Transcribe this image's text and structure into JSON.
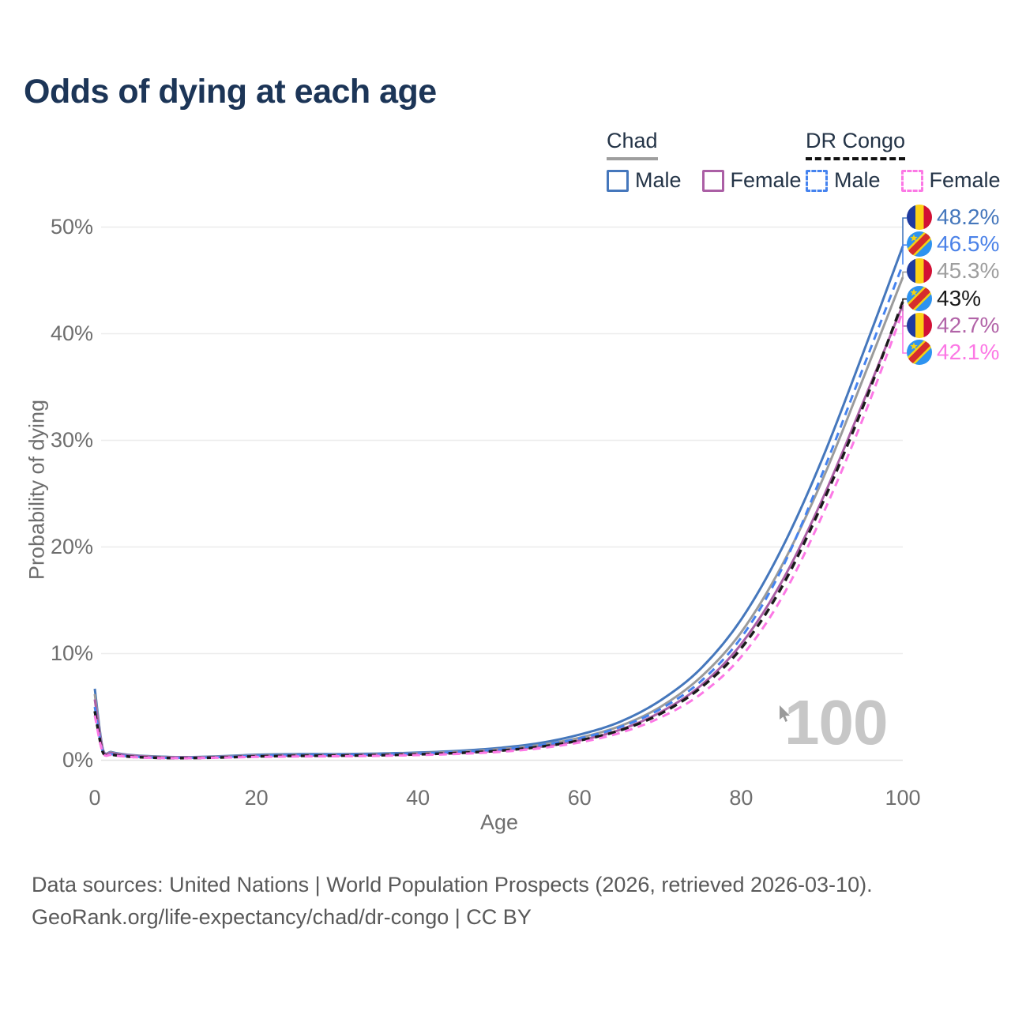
{
  "title": "Odds of dying at each age",
  "legend": {
    "groups": [
      {
        "label": "Chad",
        "line_style": "solid",
        "underline_color": "#9e9e9e",
        "items": [
          {
            "label": "Male",
            "color": "#4577bc"
          },
          {
            "label": "Female",
            "color": "#ab5fa5"
          }
        ]
      },
      {
        "label": "DR Congo",
        "line_style": "dashed",
        "underline_color": "#111111",
        "items": [
          {
            "label": "Male",
            "color": "#4583ef"
          },
          {
            "label": "Female",
            "color": "#fc78e5"
          }
        ]
      }
    ]
  },
  "axes": {
    "x_title": "Age",
    "y_title": "Probability of dying"
  },
  "watermark": "100",
  "cursor": "mouse-pointer",
  "sources": {
    "line1": "Data sources: United Nations | World Population Prospects (2026, retrieved 2026-03-10).",
    "line2": "GeoRank.org/life-expectancy/chad/dr-congo | CC BY"
  },
  "chart_data": {
    "type": "line",
    "xlabel": "Age",
    "ylabel": "Probability of dying",
    "xlim": [
      0,
      100
    ],
    "ylim": [
      0,
      50
    ],
    "x_ticks": [
      0,
      20,
      40,
      60,
      80,
      100
    ],
    "y_ticks": [
      0,
      10,
      20,
      30,
      40,
      50
    ],
    "y_tick_suffix": "%",
    "grid": "horizontal",
    "hovered_age": "100",
    "ages": [
      0,
      1,
      2,
      3,
      5,
      8,
      10,
      12,
      15,
      18,
      20,
      25,
      30,
      35,
      40,
      45,
      50,
      55,
      60,
      65,
      70,
      75,
      80,
      85,
      90,
      95,
      100
    ],
    "series": [
      {
        "key": "chad_male",
        "name": "Chad Male",
        "country": "Chad",
        "sex": "Male",
        "color": "#4577bc",
        "dash": false,
        "values": [
          6.7,
          1.05,
          0.78,
          0.62,
          0.45,
          0.34,
          0.3,
          0.3,
          0.36,
          0.45,
          0.52,
          0.58,
          0.58,
          0.62,
          0.72,
          0.88,
          1.15,
          1.6,
          2.4,
          3.6,
          5.6,
          8.6,
          13.2,
          19.8,
          28.2,
          38.0,
          48.2
        ]
      },
      {
        "key": "chad_total",
        "name": "Chad Both sexes",
        "country": "Chad",
        "sex": "Both",
        "color": "#9b9b9b",
        "dash": false,
        "values": [
          6.2,
          1.0,
          0.73,
          0.58,
          0.42,
          0.31,
          0.28,
          0.28,
          0.33,
          0.41,
          0.46,
          0.51,
          0.52,
          0.56,
          0.65,
          0.79,
          1.03,
          1.42,
          2.1,
          3.2,
          5.0,
          7.8,
          12.0,
          18.2,
          26.2,
          35.6,
          45.3
        ]
      },
      {
        "key": "chad_female",
        "name": "Chad Female",
        "country": "Chad",
        "sex": "Female",
        "color": "#ab5fa5",
        "dash": false,
        "values": [
          5.7,
          0.95,
          0.68,
          0.54,
          0.4,
          0.28,
          0.26,
          0.26,
          0.3,
          0.36,
          0.4,
          0.44,
          0.46,
          0.5,
          0.58,
          0.7,
          0.91,
          1.25,
          1.85,
          2.85,
          4.5,
          7.0,
          10.9,
          16.7,
          24.4,
          33.4,
          42.7
        ]
      },
      {
        "key": "drc_male",
        "name": "DR Congo Male",
        "country": "DR Congo",
        "sex": "Male",
        "color": "#4583ef",
        "dash": true,
        "values": [
          5.0,
          0.8,
          0.58,
          0.46,
          0.33,
          0.24,
          0.22,
          0.23,
          0.28,
          0.36,
          0.42,
          0.48,
          0.5,
          0.54,
          0.63,
          0.77,
          1.0,
          1.4,
          2.05,
          3.1,
          4.8,
          7.4,
          11.5,
          17.9,
          26.8,
          36.6,
          46.5
        ]
      },
      {
        "key": "drc_total",
        "name": "DR Congo Both sexes",
        "country": "DR Congo",
        "sex": "Both",
        "color": "#1a1a1a",
        "dash": true,
        "values": [
          4.6,
          0.75,
          0.54,
          0.43,
          0.3,
          0.22,
          0.2,
          0.21,
          0.25,
          0.31,
          0.36,
          0.41,
          0.43,
          0.47,
          0.55,
          0.68,
          0.89,
          1.25,
          1.85,
          2.8,
          4.35,
          6.8,
          10.5,
          16.2,
          24.0,
          33.0,
          43.0
        ]
      },
      {
        "key": "drc_female",
        "name": "DR Congo Female",
        "country": "DR Congo",
        "sex": "Female",
        "color": "#fc78e5",
        "dash": true,
        "values": [
          4.2,
          0.7,
          0.5,
          0.4,
          0.28,
          0.2,
          0.19,
          0.19,
          0.23,
          0.28,
          0.31,
          0.35,
          0.37,
          0.41,
          0.48,
          0.59,
          0.78,
          1.11,
          1.67,
          2.56,
          4.0,
          6.2,
          9.7,
          15.2,
          22.9,
          31.9,
          42.1
        ]
      }
    ],
    "end_labels": [
      {
        "series": "chad_male",
        "text": "48.2%",
        "flag": "chad",
        "color": "#4577bc"
      },
      {
        "series": "drc_male",
        "text": "46.5%",
        "flag": "drc",
        "color": "#4b82e8"
      },
      {
        "series": "chad_total",
        "text": "45.3%",
        "flag": "chad",
        "color": "#9e9e9e"
      },
      {
        "series": "drc_total",
        "text": "43%",
        "flag": "drc",
        "color": "#1a1a1a"
      },
      {
        "series": "chad_female",
        "text": "42.7%",
        "flag": "chad",
        "color": "#b264a8"
      },
      {
        "series": "drc_female",
        "text": "42.1%",
        "flag": "drc",
        "color": "#fc78e5"
      }
    ]
  }
}
